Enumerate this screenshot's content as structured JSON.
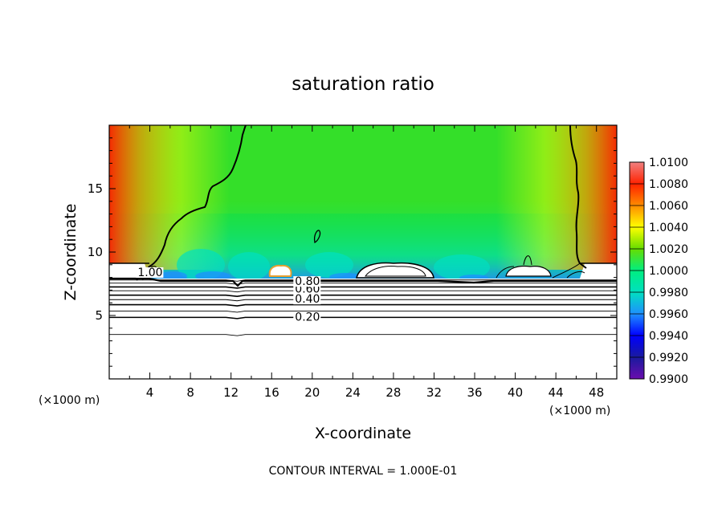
{
  "chart_data": {
    "type": "heatmap",
    "title": "saturation ratio",
    "xlabel": "X-coordinate",
    "ylabel": "Z-coordinate",
    "x_unit": "(×1000 m)",
    "y_unit": "(×1000 m)",
    "xlim": [
      0,
      50
    ],
    "ylim": [
      0,
      20
    ],
    "x_ticks": [
      4,
      8,
      12,
      16,
      20,
      24,
      28,
      32,
      36,
      40,
      44,
      48
    ],
    "y_ticks": [
      5,
      10,
      15
    ],
    "colorbar": {
      "min": 0.99,
      "max": 1.01,
      "levels": [
        "0.9900",
        "0.9920",
        "0.9940",
        "0.9960",
        "0.9980",
        "1.0000",
        "1.0020",
        "1.0040",
        "1.0060",
        "1.0080",
        "1.0100"
      ],
      "colors": [
        "#6a0dad",
        "#1a1a9e",
        "#0000ff",
        "#1e90ff",
        "#00e0c0",
        "#00ee80",
        "#66dd00",
        "#ffff00",
        "#ff8c00",
        "#ff2200",
        "#f08080"
      ]
    },
    "contour_labels": [
      {
        "text": "0.20",
        "x": 18.3,
        "z": 4.6
      },
      {
        "text": "0.40",
        "x": 18.3,
        "z": 6.0
      },
      {
        "text": "0.60",
        "x": 18.3,
        "z": 6.8
      },
      {
        "text": "0.80",
        "x": 18.3,
        "z": 7.4
      },
      {
        "text": "1.00",
        "x": 2.8,
        "z": 8.1
      }
    ],
    "contour_levels_z": [
      3.5,
      4.85,
      5.35,
      5.85,
      6.25,
      6.6,
      6.95,
      7.25,
      7.55,
      7.8
    ],
    "cloud_top_z": 9.3,
    "contour_interval": "1.000E-01"
  },
  "footer": "CONTOUR INTERVAL = 1.000E-01"
}
